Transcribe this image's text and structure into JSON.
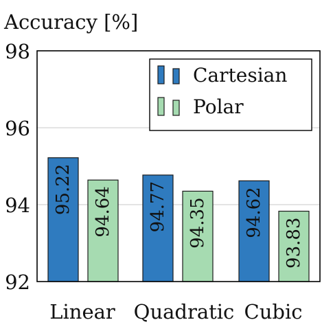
{
  "chart_data": {
    "type": "bar",
    "ylabel": "Accuracy [%]",
    "xlabel": "",
    "ylim": [
      92,
      98
    ],
    "yticks": [
      "92",
      "94",
      "96",
      "98"
    ],
    "grid": true,
    "legend_position": "top-right",
    "categories": [
      "Linear",
      "Quadratic",
      "Cubic"
    ],
    "series": [
      {
        "name": "Cartesian",
        "color": "#2f7bbf",
        "values": [
          95.22,
          94.77,
          94.62
        ],
        "labels": [
          "95.22",
          "94.77",
          "94.62"
        ]
      },
      {
        "name": "Polar",
        "color": "#a6dbb1",
        "values": [
          94.64,
          94.35,
          93.83
        ],
        "labels": [
          "94.64",
          "94.35",
          "93.83"
        ]
      }
    ]
  }
}
